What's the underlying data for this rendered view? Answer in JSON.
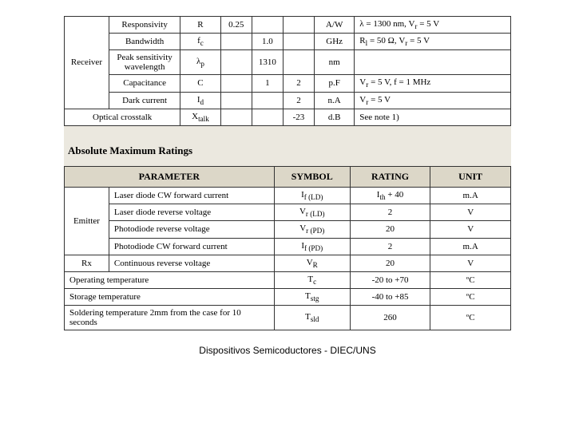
{
  "table1": {
    "rowgroup_label": "Receiver",
    "rows": [
      {
        "param": "Responsivity",
        "sym": "R",
        "c1": "0.25",
        "c2": "",
        "c3": "",
        "unit": "A/W",
        "cond": "λ = 1300 nm,  V<sub>r</sub> = 5 V"
      },
      {
        "param": "Bandwidth",
        "sym": "f<sub>c</sub>",
        "c1": "",
        "c2": "1.0",
        "c3": "",
        "unit": "GHz",
        "cond": "R<sub>l</sub> = 50 Ω,  V<sub>r</sub> = 5 V"
      },
      {
        "param": "Peak sensitivity wavelength",
        "sym": "λ<sub>p</sub>",
        "c1": "",
        "c2": "1310",
        "c3": "",
        "unit": "nm",
        "cond": ""
      },
      {
        "param": "Capacitance",
        "sym": "C",
        "c1": "",
        "c2": "1",
        "c3": "2",
        "unit": "p.F",
        "cond": "V<sub>r</sub> = 5 V,  f = 1 MHz"
      },
      {
        "param": "Dark current",
        "sym": "I<sub>d</sub>",
        "c1": "",
        "c2": "",
        "c3": "2",
        "unit": "n.A",
        "cond": "V<sub>r</sub> = 5 V"
      }
    ],
    "last": {
      "param": "Optical crosstalk",
      "sym": "X<sub>talk</sub>",
      "c1": "",
      "c2": "",
      "c3": "-23",
      "unit": "d.B",
      "cond": "See note 1)"
    }
  },
  "section_heading": "Absolute Maximum Ratings",
  "table2": {
    "headers": [
      "PARAMETER",
      "SYMBOL",
      "RATING",
      "UNIT"
    ],
    "emitter_label": "Emitter",
    "emitter_rows": [
      {
        "param": "Laser diode CW forward current",
        "sym": "I<sub>f (LD)</sub>",
        "rating": "I<sub>th</sub> + 40",
        "unit": "m.A"
      },
      {
        "param": "Laser diode reverse voltage",
        "sym": "V<sub>r (LD)</sub>",
        "rating": "2",
        "unit": "V"
      },
      {
        "param": "Photodiode reverse voltage",
        "sym": "V<sub>r (PD)</sub>",
        "rating": "20",
        "unit": "V"
      },
      {
        "param": "Photodiode CW forward current",
        "sym": "I<sub>f (PD)</sub>",
        "rating": "2",
        "unit": "m.A"
      }
    ],
    "rx_label": "Rx",
    "rx_row": {
      "param": "Continuous reverse voltage",
      "sym": "V<sub>R</sub>",
      "rating": "20",
      "unit": "V"
    },
    "full_rows": [
      {
        "param": "Operating temperature",
        "sym": "T<sub>c</sub>",
        "rating": "-20 to +70",
        "unit": "ºC"
      },
      {
        "param": "Storage temperature",
        "sym": "T<sub>stg</sub>",
        "rating": "-40 to +85",
        "unit": "ºC"
      },
      {
        "param": "Soldering temperature 2mm from the case for 10 seconds",
        "sym": "T<sub>sld</sub>",
        "rating": "260",
        "unit": "ºC"
      }
    ]
  },
  "footer": "Dispositivos Semicoductores - DIEC/UNS",
  "colors": {
    "header_bg": "#dcd7c8",
    "section_bg": "#ebe8df",
    "border": "#333333"
  }
}
